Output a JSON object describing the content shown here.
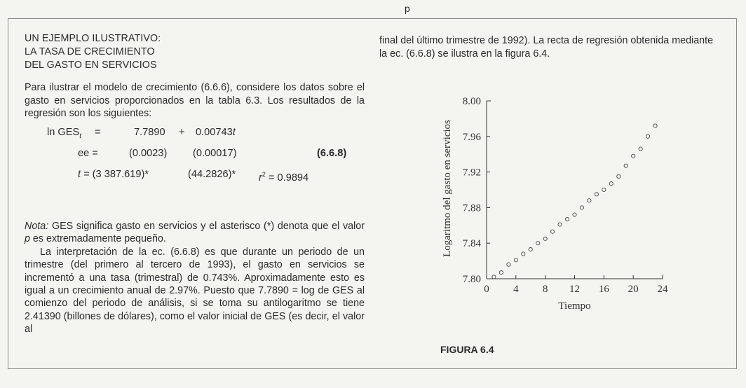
{
  "page_mark": "p",
  "section": {
    "heading": [
      "UN EJEMPLO ILUSTRATIVO:",
      "LA TASA DE CRECIMIENTO",
      "DEL GASTO EN SERVICIOS"
    ],
    "intro": "Para ilustrar el modelo de crecimiento (6.6.6), considere los datos sobre el gasto en servicios proporcionados en la tabla 6.3. Los resultados de la regresión son los siguientes:"
  },
  "equation": {
    "lhs": "ln GES",
    "lhs_sub": "t",
    "eq1": "=",
    "intercept": "7.7890",
    "plus": "+",
    "slope": "0.00743",
    "slope_var": "t",
    "se_label": "ee =",
    "se1": "(0.0023)",
    "se2": "(0.00017)",
    "number": "(6.6.8)",
    "t_label": "t",
    "t_eq": "= (3 387.619)*",
    "t2": "(44.2826)*",
    "r2_label": "r",
    "r2_value": "= 0.9894"
  },
  "note": {
    "label": "Nota:",
    "text": " GES significa gasto en servicios y el asterisco (*) denota que el valor ",
    "p": "p",
    "text2": " es extremadamente pequeño.",
    "para2": "La interpretación de la ec. (6.6.8) es que durante un periodo de un trimestre (del primero al tercero de 1993), el gasto en servicios se incrementó a una tasa (trimestral) de 0.743%. Aproximadamente esto es igual a un crecimiento anual de 2.97%. Puesto que 7.7890 = log de GES al comienzo del periodo de análisis, si se toma su antilogaritmo se tiene 2.41390 (billones de dólares), como el valor inicial de GES (es decir, el valor al"
  },
  "right": {
    "text": "final del último trimestre de 1992). La recta de regresión obtenida mediante la ec. (6.6.8) se ilustra en la figura 6.4."
  },
  "figure": {
    "caption": "FIGURA 6.4"
  },
  "chart_data": {
    "type": "scatter",
    "xlabel": "Tiempo",
    "ylabel": "Logaritmo del gasto en servicios",
    "xlim": [
      0,
      24
    ],
    "ylim": [
      7.8,
      8.0
    ],
    "xticks": [
      "0",
      "4",
      "8",
      "12",
      "16",
      "20",
      "24"
    ],
    "yticks": [
      "7.80",
      "7.84",
      "7.88",
      "7.92",
      "7.96",
      "8.00"
    ],
    "x": [
      1,
      2,
      3,
      4,
      5,
      6,
      7,
      8,
      9,
      10,
      11,
      12,
      13,
      14,
      15,
      16,
      17,
      18,
      19,
      20,
      21,
      22,
      23
    ],
    "y": [
      7.802,
      7.807,
      7.816,
      7.821,
      7.828,
      7.833,
      7.84,
      7.845,
      7.853,
      7.861,
      7.867,
      7.872,
      7.88,
      7.888,
      7.895,
      7.9,
      7.907,
      7.915,
      7.927,
      7.938,
      7.946,
      7.96,
      7.972
    ],
    "grid": false,
    "marker": "open-circle"
  }
}
